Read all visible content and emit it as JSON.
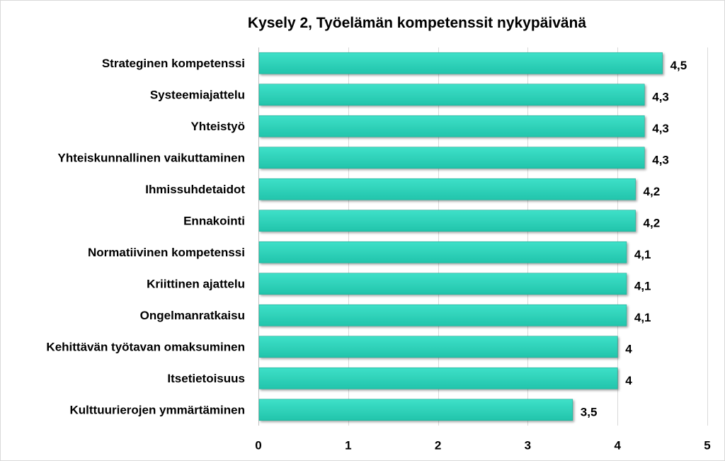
{
  "chart_data": {
    "type": "bar",
    "orientation": "horizontal",
    "title": "Kysely 2, Työelämän kompetenssit nykypäivänä",
    "xlabel": "",
    "ylabel": "",
    "categories": [
      "Strateginen kompetenssi",
      "Systeemiajattelu",
      "Yhteistyö",
      "Yhteiskunnallinen vaikuttaminen",
      "Ihmissuhdetaidot",
      "Ennakointi",
      "Normatiivinen kompetenssi",
      "Kriittinen ajattelu",
      "Ongelmanratkaisu",
      "Kehittävän työtavan omaksuminen",
      "Itsetietoisuus",
      "Kulttuurierojen ymmärtäminen"
    ],
    "values": [
      4.5,
      4.3,
      4.3,
      4.3,
      4.2,
      4.2,
      4.1,
      4.1,
      4.1,
      4.0,
      4.0,
      3.5
    ],
    "value_labels": [
      "4,5",
      "4,3",
      "4,3",
      "4,3",
      "4,2",
      "4,2",
      "4,1",
      "4,1",
      "4,1",
      "4",
      "4",
      "3,5"
    ],
    "xlim": [
      0,
      5
    ],
    "xticks": [
      0,
      1,
      2,
      3,
      4,
      5
    ],
    "xtick_labels": [
      "0",
      "1",
      "2",
      "3",
      "4",
      "5"
    ],
    "grid": true,
    "legend": "none",
    "colors": {
      "bar_fill": "#2ad1b8",
      "bar_edge": "#1fa892",
      "grid": "#d9d9d9",
      "text": "#000000"
    }
  }
}
